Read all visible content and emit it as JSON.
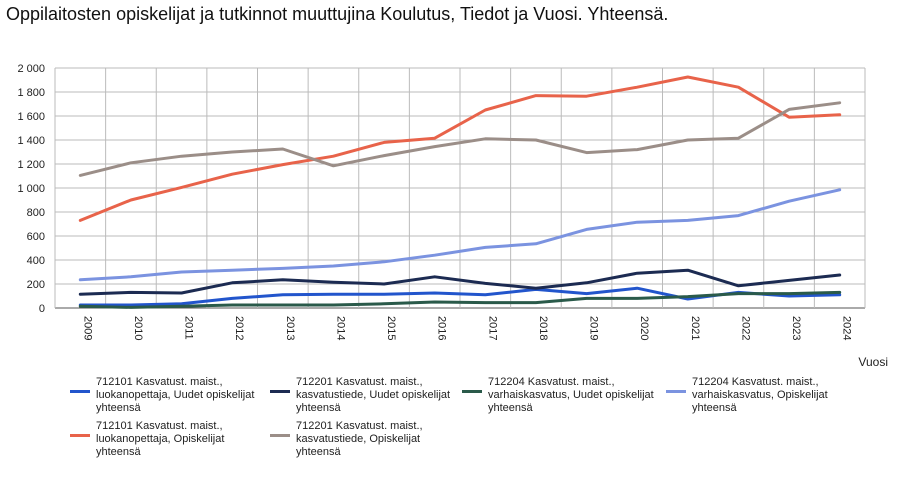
{
  "chart_data": {
    "type": "line",
    "title": "Oppilaitosten opiskelijat ja tutkinnot muuttujina Koulutus, Tiedot ja Vuosi. Yhteensä.",
    "xlabel": "Vuosi",
    "ylabel": "",
    "ylim": [
      0,
      2000
    ],
    "yticks": [
      0,
      200,
      400,
      600,
      800,
      1000,
      1200,
      1400,
      1600,
      1800,
      2000
    ],
    "ytick_labels": [
      "0",
      "200",
      "400",
      "600",
      "800",
      "1 000",
      "1 200",
      "1 400",
      "1 600",
      "1 800",
      "2 000"
    ],
    "categories": [
      "2009",
      "2010",
      "2011",
      "2012",
      "2013",
      "2014",
      "2015",
      "2016",
      "2017",
      "2018",
      "2019",
      "2020",
      "2021",
      "2022",
      "2023",
      "2024"
    ],
    "grid": true,
    "legend_position": "bottom",
    "series": [
      {
        "name": "712101 Kasvatust. maist., luokanopettaja, Uudet opiskelijat yhteensä",
        "color": "#2255cc",
        "values": [
          25,
          25,
          35,
          80,
          110,
          115,
          115,
          125,
          110,
          155,
          120,
          165,
          75,
          130,
          100,
          110
        ]
      },
      {
        "name": "712201 Kasvatust. maist., kasvatustiede, Uudet opiskelijat yhteensä",
        "color": "#1c2b52",
        "values": [
          115,
          130,
          125,
          210,
          235,
          215,
          200,
          260,
          205,
          165,
          210,
          290,
          315,
          185,
          230,
          275
        ]
      },
      {
        "name": "712204 Kasvatust. maist., varhaiskasvatus, Uudet opiskelijat yhteensä",
        "color": "#2a5a4a",
        "values": [
          15,
          5,
          15,
          25,
          25,
          25,
          35,
          50,
          45,
          45,
          80,
          80,
          95,
          120,
          120,
          130
        ]
      },
      {
        "name": "712204 Kasvatust. maist., varhaiskasvatus, Opiskelijat yhteensä",
        "color": "#7b93e0",
        "values": [
          235,
          260,
          300,
          315,
          330,
          350,
          385,
          440,
          505,
          535,
          655,
          715,
          730,
          770,
          890,
          985
        ]
      },
      {
        "name": "712101 Kasvatust. maist., luokanopettaja, Opiskelijat yhteensä",
        "color": "#e8634a",
        "values": [
          730,
          900,
          1005,
          1115,
          1195,
          1265,
          1380,
          1415,
          1650,
          1770,
          1765,
          1840,
          1925,
          1840,
          1590,
          1610
        ]
      },
      {
        "name": "712201 Kasvatust. maist., kasvatustiede, Opiskelijat yhteensä",
        "color": "#9b8e88",
        "values": [
          1105,
          1210,
          1265,
          1300,
          1325,
          1185,
          1270,
          1345,
          1410,
          1400,
          1295,
          1320,
          1400,
          1415,
          1655,
          1710
        ]
      }
    ]
  }
}
